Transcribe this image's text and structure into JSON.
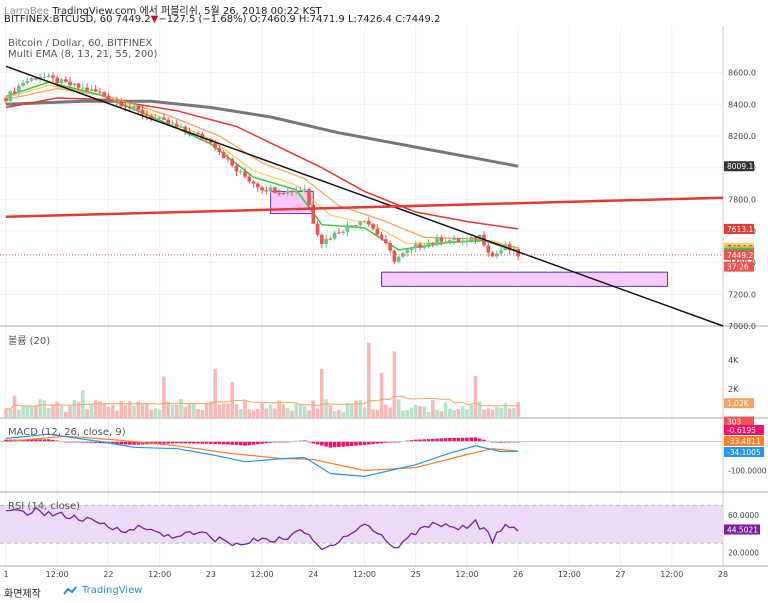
{
  "header": {
    "author": "LarraBee",
    "site_text": "TradingView.com 에서 퍼블리쉬, 5월 26, 2018 00:22 KST",
    "symbol_line": "BITFINEX:BTCUSD, 60",
    "last_price": "7449.2",
    "change": "−127.5 (−1.68%)",
    "ohlc": "O:7460.9 H:7471.9 L:7426.4 C:7449.2"
  },
  "chart_title": "Bitcoin / Dollar, 60, BITFINEX",
  "ema_legend": "Multi EMA (8, 13, 21, 55, 200)",
  "volume_label": "볼륨 (20)",
  "macd_label": "MACD (12, 26, close, 9)",
  "rsi_label": "RSI (14, close)",
  "footer": {
    "snapshot": "화면제작",
    "brand": "TradingView"
  },
  "colors": {
    "up": "#6bc18f",
    "down": "#ef5350",
    "ema8": "#2ecc40",
    "ema13": "#ffcc66",
    "ema21": "#f4a460",
    "ema55": "#e53935",
    "ema200": "#777777",
    "trend_red": "#e53935",
    "trend_black": "#111111",
    "zone_fill": "#f8c8f8",
    "zone_border": "#4b3fbf",
    "macd_line": "#2196f3",
    "signal_line": "#ff7f2a",
    "hist": "#ff0b6a",
    "rsi": "#7b1fa2",
    "rsi_band": "#ecdcf8"
  },
  "chart_data": {
    "type": "candlestick",
    "price_axis": {
      "range": [
        7000,
        8680
      ],
      "ticks": [
        "8600.0",
        "8400.0",
        "8200.0",
        "8000.0",
        "7800.0",
        "7600.0",
        "7400.0",
        "7200.0",
        "7000.0"
      ]
    },
    "time_axis": {
      "range": [
        0,
        168
      ],
      "ticks": [
        {
          "label": "1",
          "t": 0
        },
        {
          "label": "12:00",
          "t": 12
        },
        {
          "label": "22",
          "t": 24
        },
        {
          "label": "12:00",
          "t": 36
        },
        {
          "label": "23",
          "t": 48
        },
        {
          "label": "12:00",
          "t": 60
        },
        {
          "label": "24",
          "t": 72
        },
        {
          "label": "12:00",
          "t": 84
        },
        {
          "label": "25",
          "t": 96
        },
        {
          "label": "12:00",
          "t": 108
        },
        {
          "label": "26",
          "t": 120
        },
        {
          "label": "12:00",
          "t": 132
        },
        {
          "label": "27",
          "t": 144
        },
        {
          "label": "12:00",
          "t": 156
        },
        {
          "label": "28",
          "t": 168
        }
      ]
    },
    "candle_anchors": [
      {
        "t": 0,
        "p": 8440
      },
      {
        "t": 4,
        "p": 8540
      },
      {
        "t": 8,
        "p": 8580
      },
      {
        "t": 14,
        "p": 8530
      },
      {
        "t": 22,
        "p": 8470
      },
      {
        "t": 26,
        "p": 8420
      },
      {
        "t": 34,
        "p": 8320
      },
      {
        "t": 42,
        "p": 8230
      },
      {
        "t": 48,
        "p": 8170
      },
      {
        "t": 54,
        "p": 7980
      },
      {
        "t": 60,
        "p": 7870
      },
      {
        "t": 66,
        "p": 7850
      },
      {
        "t": 70,
        "p": 7870
      },
      {
        "t": 72,
        "p": 7660
      },
      {
        "t": 74,
        "p": 7530
      },
      {
        "t": 78,
        "p": 7600
      },
      {
        "t": 84,
        "p": 7680
      },
      {
        "t": 88,
        "p": 7550
      },
      {
        "t": 91,
        "p": 7420
      },
      {
        "t": 96,
        "p": 7500
      },
      {
        "t": 102,
        "p": 7550
      },
      {
        "t": 108,
        "p": 7530
      },
      {
        "t": 111,
        "p": 7570
      },
      {
        "t": 114,
        "p": 7440
      },
      {
        "t": 117,
        "p": 7500
      },
      {
        "t": 120,
        "p": 7449
      }
    ],
    "ema_anchors": {
      "ema8": [
        {
          "t": 0,
          "p": 8450
        },
        {
          "t": 10,
          "p": 8540
        },
        {
          "t": 22,
          "p": 8460
        },
        {
          "t": 36,
          "p": 8300
        },
        {
          "t": 48,
          "p": 8150
        },
        {
          "t": 58,
          "p": 7940
        },
        {
          "t": 68,
          "p": 7860
        },
        {
          "t": 74,
          "p": 7640
        },
        {
          "t": 84,
          "p": 7620
        },
        {
          "t": 92,
          "p": 7480
        },
        {
          "t": 104,
          "p": 7530
        },
        {
          "t": 112,
          "p": 7540
        },
        {
          "t": 120,
          "p": 7470
        }
      ],
      "ema13": [
        {
          "t": 0,
          "p": 8440
        },
        {
          "t": 10,
          "p": 8520
        },
        {
          "t": 22,
          "p": 8460
        },
        {
          "t": 36,
          "p": 8320
        },
        {
          "t": 48,
          "p": 8180
        },
        {
          "t": 58,
          "p": 7980
        },
        {
          "t": 68,
          "p": 7890
        },
        {
          "t": 76,
          "p": 7700
        },
        {
          "t": 86,
          "p": 7640
        },
        {
          "t": 94,
          "p": 7520
        },
        {
          "t": 106,
          "p": 7530
        },
        {
          "t": 114,
          "p": 7540
        },
        {
          "t": 120,
          "p": 7480
        }
      ],
      "ema21": [
        {
          "t": 0,
          "p": 8430
        },
        {
          "t": 12,
          "p": 8500
        },
        {
          "t": 24,
          "p": 8450
        },
        {
          "t": 38,
          "p": 8330
        },
        {
          "t": 50,
          "p": 8200
        },
        {
          "t": 60,
          "p": 8030
        },
        {
          "t": 70,
          "p": 7930
        },
        {
          "t": 78,
          "p": 7760
        },
        {
          "t": 88,
          "p": 7670
        },
        {
          "t": 98,
          "p": 7560
        },
        {
          "t": 110,
          "p": 7550
        },
        {
          "t": 120,
          "p": 7494
        }
      ],
      "ema55": [
        {
          "t": 0,
          "p": 8380
        },
        {
          "t": 12,
          "p": 8440
        },
        {
          "t": 24,
          "p": 8430
        },
        {
          "t": 40,
          "p": 8360
        },
        {
          "t": 54,
          "p": 8260
        },
        {
          "t": 64,
          "p": 8130
        },
        {
          "t": 74,
          "p": 8000
        },
        {
          "t": 84,
          "p": 7850
        },
        {
          "t": 96,
          "p": 7720
        },
        {
          "t": 108,
          "p": 7660
        },
        {
          "t": 120,
          "p": 7613
        }
      ],
      "ema200": [
        {
          "t": 0,
          "p": 8400
        },
        {
          "t": 18,
          "p": 8420
        },
        {
          "t": 34,
          "p": 8420
        },
        {
          "t": 48,
          "p": 8380
        },
        {
          "t": 62,
          "p": 8320
        },
        {
          "t": 78,
          "p": 8220
        },
        {
          "t": 96,
          "p": 8130
        },
        {
          "t": 110,
          "p": 8060
        },
        {
          "t": 120,
          "p": 8009
        }
      ]
    },
    "trendlines": [
      {
        "name": "resistance",
        "from": {
          "t": 0,
          "p": 8640
        },
        "to": {
          "t": 168,
          "p": 7000
        }
      },
      {
        "name": "support",
        "from": {
          "t": 0,
          "p": 7690
        },
        "to": {
          "t": 168,
          "p": 7810
        }
      }
    ],
    "zones": [
      {
        "t0": 62,
        "t1": 72,
        "p0": 7710,
        "p1": 7850
      },
      {
        "t0": 88,
        "t1": 155,
        "p0": 7250,
        "p1": 7340
      }
    ],
    "price_labels": [
      {
        "text": "8009.1",
        "p": 8009,
        "bg": "#333333"
      },
      {
        "text": "7613.1",
        "p": 7613,
        "bg": "#e53935"
      },
      {
        "text": "7494.0",
        "p": 7494,
        "bg": "#ffcc66"
      },
      {
        "text": "7475.3",
        "p": 7475,
        "bg": "#f4a460"
      },
      {
        "text": "7462.9",
        "p": 7462,
        "bg": "#2ecc40"
      },
      {
        "text": "7449.2",
        "p": 7449,
        "bg": "#ef5350"
      },
      {
        "text": "37:26",
        "p": 7375,
        "bg": "#ef5350"
      }
    ],
    "volume": {
      "ticks": [
        {
          "label": "4K",
          "v": 4000
        },
        {
          "label": "2K",
          "v": 2000
        }
      ],
      "max": 5800,
      "labels": [
        {
          "text": "1.02K",
          "v": 1020,
          "bg": "#f4a460"
        },
        {
          "text": "303",
          "v": 303,
          "bg": "#ef5350"
        }
      ]
    },
    "macd": {
      "ticks": [
        {
          "label": "-100.0000",
          "v": -100
        }
      ],
      "range": [
        -160,
        60
      ],
      "labels": [
        {
          "text": "-0.6195",
          "v": 0,
          "bg": "#ff0b6a"
        },
        {
          "text": "-33.4811",
          "v": -22,
          "bg": "#ff7f2a"
        },
        {
          "text": "-34.1005",
          "v": -44,
          "bg": "#2196f3"
        }
      ]
    },
    "rsi": {
      "range": [
        10,
        80
      ],
      "band": [
        30,
        70
      ],
      "ticks": [
        {
          "label": "60.0000",
          "v": 60
        },
        {
          "label": "20.0000",
          "v": 20
        }
      ],
      "labels": [
        {
          "text": "44.5021",
          "v": 44.5,
          "bg": "#7b1fa2"
        }
      ],
      "anchors": [
        {
          "t": 0,
          "v": 62
        },
        {
          "t": 8,
          "v": 64
        },
        {
          "t": 18,
          "v": 55
        },
        {
          "t": 26,
          "v": 45
        },
        {
          "t": 32,
          "v": 46
        },
        {
          "t": 38,
          "v": 38
        },
        {
          "t": 46,
          "v": 40
        },
        {
          "t": 52,
          "v": 30
        },
        {
          "t": 56,
          "v": 28
        },
        {
          "t": 60,
          "v": 36
        },
        {
          "t": 64,
          "v": 33
        },
        {
          "t": 68,
          "v": 42
        },
        {
          "t": 71,
          "v": 38
        },
        {
          "t": 74,
          "v": 22
        },
        {
          "t": 78,
          "v": 34
        },
        {
          "t": 84,
          "v": 50
        },
        {
          "t": 88,
          "v": 38
        },
        {
          "t": 91,
          "v": 24
        },
        {
          "t": 96,
          "v": 42
        },
        {
          "t": 100,
          "v": 52
        },
        {
          "t": 106,
          "v": 46
        },
        {
          "t": 110,
          "v": 52
        },
        {
          "t": 114,
          "v": 34
        },
        {
          "t": 117,
          "v": 46
        },
        {
          "t": 120,
          "v": 44.5
        }
      ]
    }
  }
}
